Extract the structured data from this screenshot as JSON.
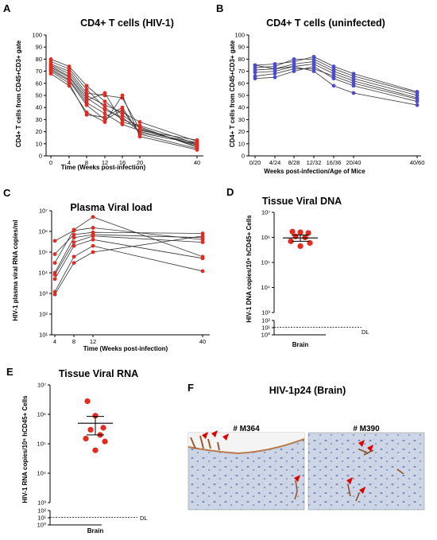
{
  "colors": {
    "red": "#e8291f",
    "blue": "#4b4bd6",
    "line": "#333333"
  },
  "panels": {
    "A": {
      "letter": "A",
      "title": "CD4+ T cells (HIV-1)",
      "ylabel": "CD4+ T cells from CD45+CD3+ gate",
      "xlabel": "Time (Weeks post-infection)",
      "yticks": [
        "0",
        "10",
        "20",
        "30",
        "40",
        "50",
        "60",
        "70",
        "80",
        "90",
        "100"
      ],
      "xticks": [
        "0",
        "4",
        "8",
        "12",
        "16",
        "20",
        "40"
      ]
    },
    "B": {
      "letter": "B",
      "title": "CD4+ T cells (uninfected)",
      "ylabel": "CD4+ T cells from CD45+CD3+ gate",
      "xlabel": "Weeks post-infection/Age of Mice",
      "yticks": [
        "0",
        "10",
        "20",
        "30",
        "40",
        "50",
        "60",
        "70",
        "80",
        "90",
        "100"
      ],
      "xticks": [
        "0/20",
        "4/24",
        "8/28",
        "12/32",
        "16/36",
        "20/40",
        "40/60"
      ]
    },
    "C": {
      "letter": "C",
      "title": "Plasma Viral load",
      "ylabel": "HIV-1 plasma viral RNA copies/ml",
      "xlabel": "Time (Weeks post-infection)",
      "yticks": [
        "10¹",
        "10²",
        "10³",
        "10⁴",
        "10⁵",
        "10⁶",
        "10⁷"
      ],
      "xticks": [
        "4",
        "8",
        "12",
        "40"
      ]
    },
    "D": {
      "letter": "D",
      "title": "Tissue Viral DNA",
      "ylabel": "HIV-1 DNA copies/10⁶ hCD45+ Cells",
      "xlabel": "Brain",
      "yticks": [
        "10⁰",
        "10¹",
        "10²",
        "10³",
        "10⁴",
        "10⁵",
        "10⁶",
        "10⁷"
      ],
      "dl": "DL"
    },
    "E": {
      "letter": "E",
      "title": "Tissue Viral RNA",
      "ylabel": "HIV-1 RNA copies/10⁶ hCD45+ Cells",
      "xlabel": "Brain",
      "yticks": [
        "10⁰",
        "10¹",
        "10²",
        "10³",
        "10⁴",
        "10⁵",
        "10⁶",
        "10⁷"
      ],
      "dl": "DL"
    },
    "F": {
      "letter": "F",
      "title": "HIV-1p24 (Brain)",
      "image1_label": "# M364",
      "image2_label": "# M390"
    }
  },
  "chart_data": [
    {
      "panel": "A",
      "type": "line",
      "title": "CD4+ T cells (HIV-1)",
      "xlabel": "Time (Weeks post-infection)",
      "ylabel": "CD4+ T cells from CD45+CD3+ gate",
      "x": [
        0,
        4,
        8,
        12,
        16,
        20,
        40
      ],
      "ylim": [
        0,
        100
      ],
      "series": [
        {
          "values": [
            80,
            74,
            58,
            45,
            34,
            23,
            8
          ]
        },
        {
          "values": [
            78,
            72,
            55,
            40,
            30,
            25,
            10
          ]
        },
        {
          "values": [
            76,
            70,
            52,
            50,
            48,
            22,
            9
          ]
        },
        {
          "values": [
            75,
            68,
            50,
            42,
            36,
            28,
            12
          ]
        },
        {
          "values": [
            74,
            66,
            48,
            38,
            32,
            20,
            11
          ]
        },
        {
          "values": [
            73,
            65,
            46,
            52,
            28,
            24,
            7
          ]
        },
        {
          "values": [
            72,
            63,
            44,
            35,
            26,
            21,
            13
          ]
        },
        {
          "values": [
            71,
            62,
            42,
            30,
            38,
            19,
            10
          ]
        },
        {
          "values": [
            70,
            60,
            34,
            32,
            40,
            18,
            6
          ]
        },
        {
          "values": [
            68,
            58,
            36,
            28,
            50,
            16,
            5
          ]
        }
      ]
    },
    {
      "panel": "B",
      "type": "line",
      "title": "CD4+ T cells (uninfected)",
      "xlabel": "Weeks post-infection/Age of Mice",
      "ylabel": "CD4+ T cells from CD45+CD3+ gate",
      "x": [
        "0/20",
        "4/24",
        "8/28",
        "12/32",
        "16/36",
        "20/40",
        "40/60"
      ],
      "ylim": [
        0,
        100
      ],
      "series": [
        {
          "values": [
            75,
            76,
            78,
            82,
            74,
            68,
            53
          ]
        },
        {
          "values": [
            73,
            74,
            80,
            80,
            72,
            66,
            52
          ]
        },
        {
          "values": [
            71,
            72,
            76,
            78,
            70,
            64,
            50
          ]
        },
        {
          "values": [
            69,
            70,
            74,
            76,
            68,
            62,
            48
          ]
        },
        {
          "values": [
            66,
            68,
            72,
            72,
            66,
            60,
            47
          ]
        },
        {
          "values": [
            64,
            65,
            70,
            74,
            64,
            58,
            45
          ]
        },
        {
          "values": [
            75,
            72,
            74,
            70,
            58,
            52,
            42
          ]
        }
      ]
    },
    {
      "panel": "C",
      "type": "line",
      "title": "Plasma Viral load",
      "xlabel": "Time (Weeks post-infection)",
      "ylabel": "HIV-1 plasma viral RNA copies/ml",
      "x": [
        4,
        8,
        12,
        40
      ],
      "yscale": "log",
      "ylim": [
        10,
        10000000
      ],
      "series": [
        {
          "values": [
            350000,
            1100000,
            1500000,
            400000
          ]
        },
        {
          "values": [
            80000,
            700000,
            900000,
            800000
          ]
        },
        {
          "values": [
            30000,
            1200000,
            5000000,
            60000
          ]
        },
        {
          "values": [
            10000,
            500000,
            700000,
            500000
          ]
        },
        {
          "values": [
            8000,
            300000,
            600000,
            300000
          ]
        },
        {
          "values": [
            5000,
            200000,
            400000,
            50000
          ]
        },
        {
          "values": [
            1200,
            60000,
            200000,
            12000
          ]
        },
        {
          "values": [
            900,
            30000,
            100000,
            600000
          ]
        }
      ]
    },
    {
      "panel": "D",
      "type": "scatter",
      "title": "Tissue Viral DNA",
      "ylabel": "HIV-1 DNA copies/10⁶ hCD45+ Cells",
      "categories": [
        "Brain"
      ],
      "yscale": "log",
      "ylim": [
        1,
        10000000
      ],
      "values": [
        1700000,
        1600000,
        1500000,
        1100000,
        1000000,
        700000,
        600000,
        450000
      ],
      "mean": 950000,
      "sem_low": 700000,
      "sem_high": 1250000,
      "dl_value": 11
    },
    {
      "panel": "E",
      "type": "scatter",
      "title": "Tissue Viral RNA",
      "ylabel": "HIV-1 RNA copies/10⁶ hCD45+ Cells",
      "categories": [
        "Brain"
      ],
      "yscale": "log",
      "ylim": [
        1,
        10000000
      ],
      "values": [
        2800000,
        900000,
        350000,
        300000,
        200000,
        150000,
        120000,
        60000
      ],
      "mean": 500000,
      "sem_low": 200000,
      "sem_high": 850000,
      "dl_value": 11
    }
  ]
}
